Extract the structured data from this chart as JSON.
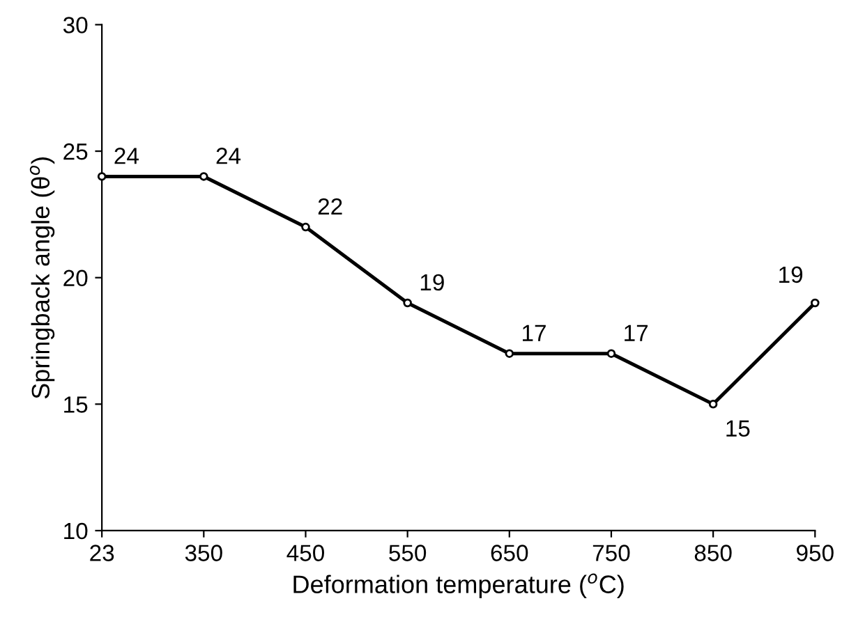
{
  "chart_data": {
    "type": "line",
    "xlabel": "Deformation temperature ($^{o}$C)",
    "ylabel": "Springback angle (θ$^{o}$)",
    "categories": [
      "23",
      "350",
      "450",
      "550",
      "650",
      "750",
      "850",
      "950"
    ],
    "series": [
      {
        "color": "#000000",
        "values": [
          24,
          24,
          22,
          19,
          17,
          17,
          15,
          19
        ]
      }
    ],
    "ylim": [
      10,
      30
    ],
    "yticks": [
      10,
      15,
      20,
      25,
      30
    ],
    "marker": "circle",
    "line_style": "solid",
    "data_labels": true,
    "grid": false,
    "legend": false
  }
}
